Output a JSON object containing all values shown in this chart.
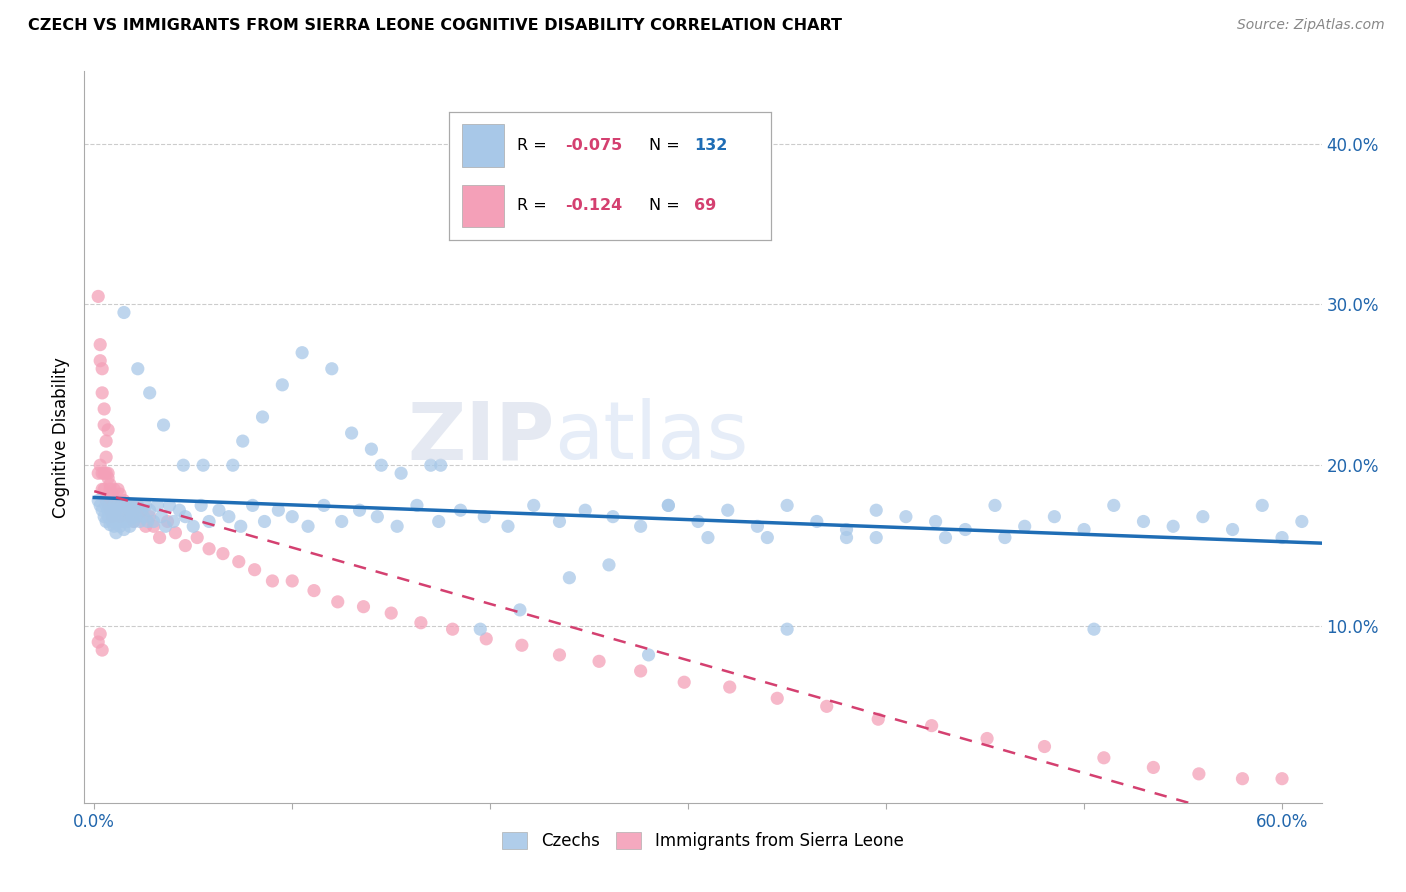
{
  "title": "CZECH VS IMMIGRANTS FROM SIERRA LEONE COGNITIVE DISABILITY CORRELATION CHART",
  "source": "Source: ZipAtlas.com",
  "ylabel": "Cognitive Disability",
  "ytick_values": [
    0.1,
    0.2,
    0.3,
    0.4
  ],
  "xlim": [
    -0.005,
    0.62
  ],
  "ylim": [
    -0.01,
    0.445
  ],
  "color_czech": "#a8c8e8",
  "color_czech_line": "#1f6db5",
  "color_sierra": "#f4a0b8",
  "color_sierra_line": "#d44070",
  "watermark": "ZIPatlas",
  "czechs_x": [
    0.002,
    0.003,
    0.004,
    0.005,
    0.006,
    0.006,
    0.007,
    0.007,
    0.008,
    0.008,
    0.009,
    0.009,
    0.01,
    0.01,
    0.01,
    0.011,
    0.011,
    0.012,
    0.012,
    0.013,
    0.013,
    0.014,
    0.014,
    0.015,
    0.015,
    0.016,
    0.016,
    0.017,
    0.017,
    0.018,
    0.018,
    0.019,
    0.019,
    0.02,
    0.02,
    0.021,
    0.022,
    0.023,
    0.024,
    0.025,
    0.026,
    0.027,
    0.028,
    0.03,
    0.032,
    0.034,
    0.036,
    0.038,
    0.04,
    0.043,
    0.046,
    0.05,
    0.054,
    0.058,
    0.063,
    0.068,
    0.074,
    0.08,
    0.086,
    0.093,
    0.1,
    0.108,
    0.116,
    0.125,
    0.134,
    0.143,
    0.153,
    0.163,
    0.174,
    0.185,
    0.197,
    0.209,
    0.222,
    0.235,
    0.248,
    0.262,
    0.276,
    0.29,
    0.305,
    0.32,
    0.335,
    0.35,
    0.365,
    0.38,
    0.395,
    0.41,
    0.425,
    0.44,
    0.455,
    0.47,
    0.485,
    0.5,
    0.515,
    0.53,
    0.545,
    0.56,
    0.575,
    0.59,
    0.6,
    0.61,
    0.34,
    0.395,
    0.46,
    0.505,
    0.29,
    0.31,
    0.43,
    0.38,
    0.28,
    0.35,
    0.195,
    0.215,
    0.24,
    0.26,
    0.175,
    0.14,
    0.155,
    0.17,
    0.085,
    0.095,
    0.105,
    0.12,
    0.13,
    0.145,
    0.07,
    0.075,
    0.055,
    0.045,
    0.035,
    0.028,
    0.022,
    0.015
  ],
  "czechs_y": [
    0.178,
    0.175,
    0.172,
    0.168,
    0.175,
    0.165,
    0.172,
    0.168,
    0.175,
    0.163,
    0.17,
    0.165,
    0.175,
    0.168,
    0.162,
    0.172,
    0.158,
    0.175,
    0.165,
    0.172,
    0.162,
    0.175,
    0.165,
    0.172,
    0.16,
    0.175,
    0.168,
    0.165,
    0.175,
    0.172,
    0.162,
    0.168,
    0.175,
    0.165,
    0.172,
    0.168,
    0.175,
    0.165,
    0.172,
    0.168,
    0.175,
    0.165,
    0.172,
    0.165,
    0.175,
    0.168,
    0.162,
    0.175,
    0.165,
    0.172,
    0.168,
    0.162,
    0.175,
    0.165,
    0.172,
    0.168,
    0.162,
    0.175,
    0.165,
    0.172,
    0.168,
    0.162,
    0.175,
    0.165,
    0.172,
    0.168,
    0.162,
    0.175,
    0.165,
    0.172,
    0.168,
    0.162,
    0.175,
    0.165,
    0.172,
    0.168,
    0.162,
    0.175,
    0.165,
    0.172,
    0.162,
    0.175,
    0.165,
    0.16,
    0.172,
    0.168,
    0.165,
    0.16,
    0.175,
    0.162,
    0.168,
    0.16,
    0.175,
    0.165,
    0.162,
    0.168,
    0.16,
    0.175,
    0.155,
    0.165,
    0.155,
    0.155,
    0.155,
    0.098,
    0.175,
    0.155,
    0.155,
    0.155,
    0.082,
    0.098,
    0.098,
    0.11,
    0.13,
    0.138,
    0.2,
    0.21,
    0.195,
    0.2,
    0.23,
    0.25,
    0.27,
    0.26,
    0.22,
    0.2,
    0.2,
    0.215,
    0.2,
    0.2,
    0.225,
    0.245,
    0.26,
    0.295
  ],
  "sierra_x": [
    0.002,
    0.003,
    0.004,
    0.004,
    0.005,
    0.005,
    0.006,
    0.006,
    0.007,
    0.007,
    0.008,
    0.008,
    0.009,
    0.009,
    0.01,
    0.01,
    0.011,
    0.012,
    0.012,
    0.013,
    0.013,
    0.014,
    0.015,
    0.016,
    0.017,
    0.018,
    0.019,
    0.02,
    0.021,
    0.022,
    0.024,
    0.026,
    0.028,
    0.03,
    0.033,
    0.037,
    0.041,
    0.046,
    0.052,
    0.058,
    0.065,
    0.073,
    0.081,
    0.09,
    0.1,
    0.111,
    0.123,
    0.136,
    0.15,
    0.165,
    0.181,
    0.198,
    0.216,
    0.235,
    0.255,
    0.276,
    0.298,
    0.321,
    0.345,
    0.37,
    0.396,
    0.423,
    0.451,
    0.48,
    0.51,
    0.535,
    0.558,
    0.58,
    0.6
  ],
  "sierra_y": [
    0.195,
    0.2,
    0.195,
    0.185,
    0.195,
    0.185,
    0.195,
    0.178,
    0.192,
    0.175,
    0.188,
    0.172,
    0.182,
    0.168,
    0.185,
    0.175,
    0.178,
    0.185,
    0.172,
    0.182,
    0.168,
    0.175,
    0.178,
    0.172,
    0.175,
    0.168,
    0.172,
    0.165,
    0.175,
    0.168,
    0.172,
    0.162,
    0.168,
    0.162,
    0.155,
    0.165,
    0.158,
    0.15,
    0.155,
    0.148,
    0.145,
    0.14,
    0.135,
    0.128,
    0.128,
    0.122,
    0.115,
    0.112,
    0.108,
    0.102,
    0.098,
    0.092,
    0.088,
    0.082,
    0.078,
    0.072,
    0.065,
    0.062,
    0.055,
    0.05,
    0.042,
    0.038,
    0.03,
    0.025,
    0.018,
    0.012,
    0.008,
    0.005,
    0.005
  ],
  "extra_sierra_x": [
    0.002,
    0.003,
    0.003,
    0.004,
    0.004,
    0.005,
    0.005,
    0.006,
    0.006,
    0.007,
    0.007,
    0.008,
    0.002,
    0.003,
    0.004
  ],
  "extra_sierra_y": [
    0.305,
    0.275,
    0.265,
    0.26,
    0.245,
    0.235,
    0.225,
    0.215,
    0.205,
    0.222,
    0.195,
    0.185,
    0.09,
    0.095,
    0.085
  ]
}
